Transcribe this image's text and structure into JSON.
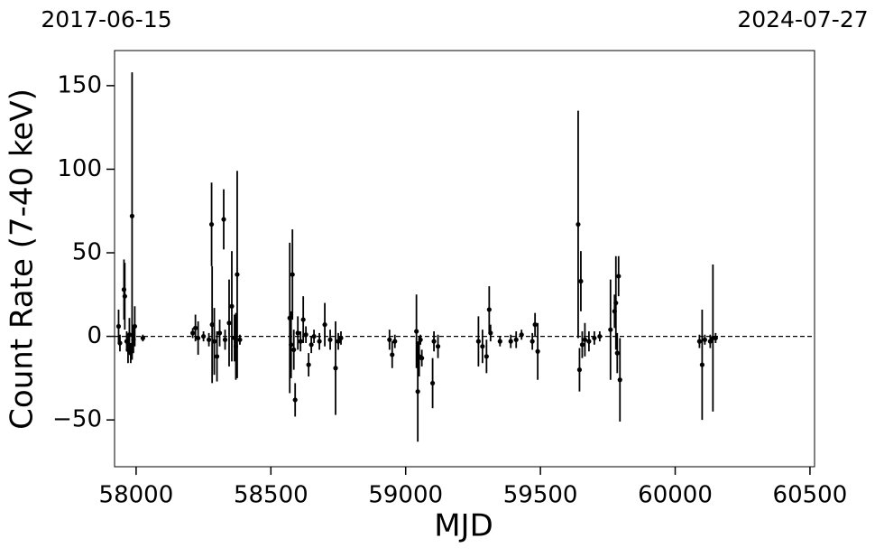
{
  "chart_data": {
    "type": "scatter",
    "annotations": [
      "2017-06-15",
      "2024-07-27"
    ],
    "x_label": "MJD",
    "y_label": "Count Rate (7-40 keV)",
    "xlim": [
      57920,
      60517
    ],
    "ylim": [
      -78,
      171
    ],
    "xticks": [
      58000,
      58500,
      59000,
      59500,
      60000,
      60500
    ],
    "yticks": [
      {
        "value": -50,
        "label": "−50"
      },
      0,
      50,
      100,
      150
    ],
    "hline": 0,
    "series": [
      {
        "color": "#000000",
        "x": [
          57935,
          57940,
          57955,
          57958,
          57965,
          57970,
          57975,
          57980,
          57985,
          57990,
          57995,
          58025,
          58210,
          58220,
          58230,
          58250,
          58270,
          58280,
          58282,
          58290,
          58300,
          58310,
          58325,
          58330,
          58345,
          58355,
          58365,
          58375,
          58385,
          58370,
          58570,
          58575,
          58580,
          58585,
          58590,
          58600,
          58610,
          58620,
          58630,
          58640,
          58650,
          58660,
          58680,
          58700,
          58720,
          58740,
          58750,
          58760,
          58940,
          58950,
          58960,
          59040,
          59045,
          59050,
          59060,
          59055,
          59100,
          59105,
          59120,
          59270,
          59285,
          59300,
          59310,
          59315,
          59350,
          59390,
          59410,
          59430,
          59480,
          59490,
          59470,
          59640,
          59645,
          59650,
          59655,
          59665,
          59680,
          59700,
          59720,
          59760,
          59775,
          59780,
          59785,
          59790,
          59795,
          60090,
          60100,
          60110,
          60130,
          60140,
          60150
        ],
        "values": [
          6,
          -4,
          28,
          24,
          -3,
          -8,
          1,
          -10,
          72,
          -2,
          6,
          -1,
          2,
          5,
          -1,
          0,
          -2,
          67,
          7,
          -3,
          -12,
          2,
          70,
          -2,
          8,
          18,
          -1,
          37,
          -2,
          -6,
          11,
          -5,
          37,
          -8,
          -38,
          2,
          -3,
          10,
          1,
          -17,
          -5,
          0,
          -3,
          7,
          -2,
          -19,
          -3,
          -1,
          -2,
          -11,
          -3,
          3,
          -33,
          -12,
          -13,
          -2,
          -28,
          -3,
          -6,
          -3,
          -6,
          -12,
          16,
          2,
          -3,
          -3,
          -2,
          1,
          7,
          -9,
          -3,
          67,
          -20,
          33,
          -5,
          -2,
          -3,
          -1,
          0,
          4,
          15,
          20,
          -10,
          36,
          -26,
          -3,
          -17,
          -2,
          -3,
          -1,
          -1
        ],
        "errors": [
          10,
          5,
          18,
          20,
          6,
          8,
          10,
          6,
          86,
          8,
          12,
          2,
          3,
          8,
          10,
          3,
          4,
          25,
          35,
          20,
          15,
          8,
          18,
          6,
          26,
          33,
          14,
          62,
          3,
          20,
          45,
          20,
          27,
          12,
          10,
          10,
          6,
          14,
          5,
          7,
          5,
          4,
          5,
          13,
          6,
          28,
          5,
          4,
          6,
          8,
          4,
          22,
          30,
          12,
          5,
          3,
          15,
          6,
          7,
          15,
          10,
          10,
          14,
          5,
          3,
          4,
          5,
          3,
          7,
          17,
          5,
          68,
          13,
          18,
          8,
          10,
          6,
          4,
          3,
          30,
          10,
          28,
          12,
          12,
          25,
          4,
          33,
          3,
          4,
          44,
          3
        ]
      }
    ]
  }
}
